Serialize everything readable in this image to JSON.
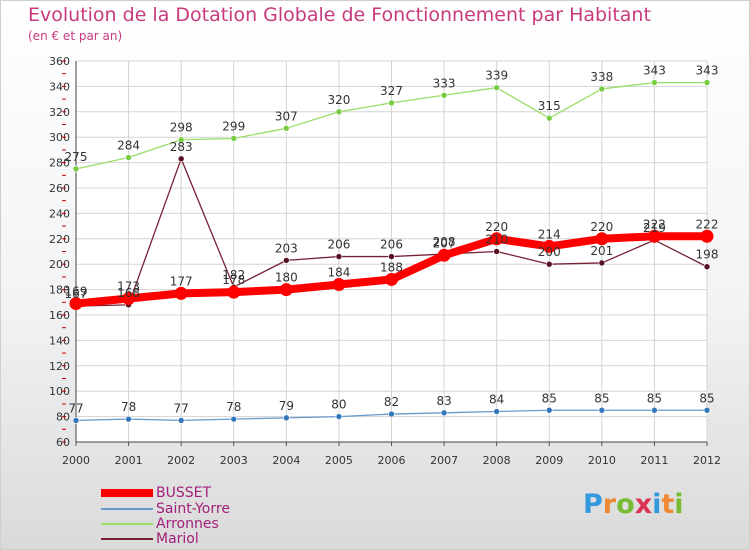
{
  "chart_data": {
    "type": "line",
    "title": "Evolution de la Dotation Globale de Fonctionnement par Habitant",
    "subtitle": "(en € et par an)",
    "xlabel": "",
    "ylabel": "",
    "x": [
      "2000",
      "2001",
      "2002",
      "2003",
      "2004",
      "2005",
      "2006",
      "2007",
      "2008",
      "2009",
      "2010",
      "2011",
      "2012"
    ],
    "ylim": [
      60,
      360
    ],
    "yticks": [
      "60",
      "80",
      "100",
      "120",
      "140",
      "160",
      "180",
      "200",
      "220",
      "240",
      "260",
      "280",
      "300",
      "320",
      "340",
      "360"
    ],
    "grid": true,
    "legend_position": "bottom-left",
    "series": [
      {
        "name": "Arronnes",
        "color": "#99dd66",
        "marker": "#77cc44",
        "values": [
          275,
          284,
          298,
          299,
          307,
          320,
          327,
          333,
          339,
          315,
          338,
          343,
          343
        ],
        "labels": [
          "275",
          "284",
          "298",
          "299",
          "307",
          "320",
          "327",
          "333",
          "339",
          "315",
          "338",
          "343",
          "343"
        ]
      },
      {
        "name": "Mariol",
        "color": "#772233",
        "marker": "#551122",
        "values": [
          167,
          168,
          283,
          182,
          203,
          206,
          206,
          208,
          210,
          200,
          201,
          219,
          198
        ],
        "labels": [
          "167",
          "168",
          "283",
          "182",
          "203",
          "206",
          "206",
          "208",
          "210",
          "200",
          "201",
          "219",
          "198"
        ]
      },
      {
        "name": "Saint-Yorre",
        "color": "#6699cc",
        "marker": "#3377bb",
        "values": [
          77,
          78,
          77,
          78,
          79,
          80,
          82,
          83,
          84,
          85,
          85,
          85,
          85
        ],
        "labels": [
          "77",
          "78",
          "77",
          "78",
          "79",
          "80",
          "82",
          "83",
          "84",
          "85",
          "85",
          "85",
          "85"
        ]
      },
      {
        "name": "BUSSET",
        "color": "#ff0000",
        "marker": "#ff0000",
        "values": [
          169,
          173,
          177,
          178,
          180,
          184,
          188,
          207,
          220,
          214,
          220,
          222,
          222
        ],
        "labels": [
          "169",
          "173",
          "177",
          "178",
          "180",
          "184",
          "188",
          "207",
          "220",
          "214",
          "220",
          "222",
          "222"
        ]
      }
    ],
    "legend_order": [
      "BUSSET",
      "Saint-Yorre",
      "Arronnes",
      "Mariol"
    ]
  },
  "brand": {
    "letters": [
      "P",
      "r",
      "o",
      "x",
      "i",
      "t",
      "i"
    ],
    "colors": [
      "#3399dd",
      "#ee8833",
      "#77bb33",
      "#dd3355",
      "#3399dd",
      "#ee8833",
      "#77bb33"
    ]
  }
}
